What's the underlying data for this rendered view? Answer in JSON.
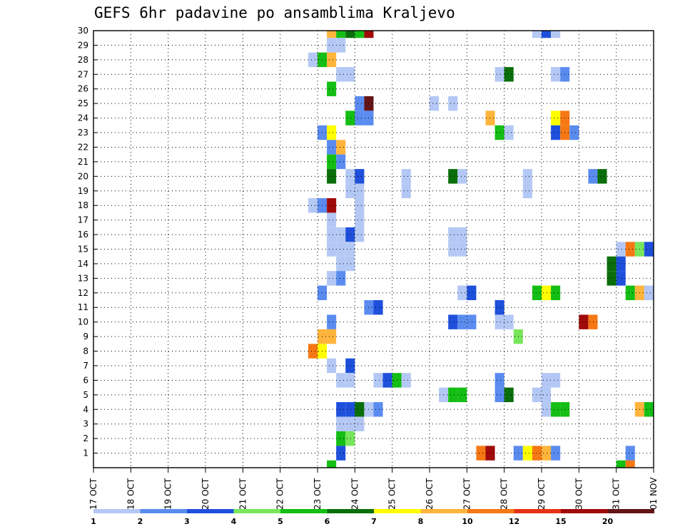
{
  "chart_data": {
    "type": "heatmap",
    "title": "GEFS 6hr padavine po ansamblima Kraljevo",
    "xlabel": "",
    "ylabel": "",
    "x_ticks": [
      "17 OCT",
      "18 OCT",
      "19 OCT",
      "20 OCT",
      "21 OCT",
      "22 OCT",
      "23 OCT",
      "24 OCT",
      "25 OCT",
      "26 OCT",
      "27 OCT",
      "28 OCT",
      "29 OCT",
      "30 OCT",
      "31 OCT",
      "01 NOV"
    ],
    "xlim": [
      0,
      15
    ],
    "y_ticks": [
      1,
      2,
      3,
      4,
      5,
      6,
      7,
      8,
      9,
      10,
      11,
      12,
      13,
      14,
      15,
      16,
      17,
      18,
      19,
      20,
      21,
      22,
      23,
      24,
      25,
      26,
      27,
      28,
      29,
      30
    ],
    "ylim": [
      0,
      30
    ],
    "grid": true,
    "legend": {
      "position": "bottom",
      "labels": [
        "1",
        "2",
        "3",
        "4",
        "5",
        "6",
        "7",
        "8",
        "10",
        "12",
        "15",
        "20"
      ],
      "colors": [
        "#b4c8f5",
        "#5a8cf0",
        "#1e50dc",
        "#78e65a",
        "#14be14",
        "#0a6e0a",
        "#ffff00",
        "#ffb43c",
        "#f57814",
        "#e63214",
        "#a00a0a",
        "#641414"
      ]
    },
    "cells": [
      [
        30,
        6.25,
        8
      ],
      [
        30,
        6.5,
        5
      ],
      [
        30,
        6.75,
        6
      ],
      [
        30,
        7.0,
        5
      ],
      [
        30,
        7.25,
        11
      ],
      [
        30,
        11.75,
        1
      ],
      [
        30,
        12.0,
        3
      ],
      [
        30,
        12.25,
        1
      ],
      [
        29,
        6.25,
        1
      ],
      [
        29,
        6.5,
        1
      ],
      [
        28,
        5.75,
        1
      ],
      [
        28,
        6.0,
        5
      ],
      [
        28,
        6.25,
        8
      ],
      [
        27,
        6.5,
        1
      ],
      [
        27,
        6.75,
        1
      ],
      [
        27,
        10.75,
        1
      ],
      [
        27,
        11.0,
        6
      ],
      [
        27,
        12.25,
        1
      ],
      [
        27,
        12.5,
        2
      ],
      [
        26,
        6.25,
        5
      ],
      [
        25,
        7.0,
        2
      ],
      [
        25,
        7.25,
        12
      ],
      [
        25,
        9.0,
        1
      ],
      [
        25,
        9.5,
        1
      ],
      [
        24,
        6.75,
        5
      ],
      [
        24,
        7.0,
        2
      ],
      [
        24,
        7.25,
        2
      ],
      [
        24,
        10.5,
        8
      ],
      [
        24,
        12.25,
        7
      ],
      [
        24,
        12.5,
        9
      ],
      [
        23,
        6.0,
        2
      ],
      [
        23,
        6.25,
        7
      ],
      [
        23,
        10.75,
        5
      ],
      [
        23,
        11.0,
        1
      ],
      [
        23,
        12.25,
        3
      ],
      [
        23,
        12.5,
        9
      ],
      [
        23,
        12.75,
        2
      ],
      [
        22,
        6.25,
        2
      ],
      [
        22,
        6.5,
        8
      ],
      [
        21,
        6.25,
        5
      ],
      [
        21,
        6.5,
        2
      ],
      [
        20,
        6.25,
        6
      ],
      [
        20,
        6.75,
        1
      ],
      [
        20,
        7.0,
        3
      ],
      [
        20,
        8.25,
        1
      ],
      [
        20,
        9.5,
        6
      ],
      [
        20,
        9.75,
        1
      ],
      [
        20,
        11.5,
        1
      ],
      [
        20,
        13.25,
        2
      ],
      [
        20,
        13.5,
        6
      ],
      [
        19,
        6.75,
        1
      ],
      [
        19,
        7.0,
        1
      ],
      [
        19,
        8.25,
        1
      ],
      [
        19,
        11.5,
        1
      ],
      [
        18,
        5.75,
        1
      ],
      [
        18,
        6.0,
        2
      ],
      [
        18,
        6.25,
        11
      ],
      [
        18,
        7.0,
        1
      ],
      [
        17,
        6.25,
        1
      ],
      [
        17,
        7.0,
        1
      ],
      [
        16,
        6.25,
        1
      ],
      [
        16,
        6.5,
        1
      ],
      [
        16,
        6.75,
        3
      ],
      [
        16,
        7.0,
        1
      ],
      [
        16,
        9.5,
        1
      ],
      [
        16,
        9.75,
        1
      ],
      [
        15,
        6.25,
        1
      ],
      [
        15,
        6.5,
        1
      ],
      [
        15,
        6.75,
        1
      ],
      [
        15,
        9.5,
        1
      ],
      [
        15,
        9.75,
        1
      ],
      [
        15,
        14.0,
        1
      ],
      [
        15,
        14.25,
        9
      ],
      [
        15,
        14.5,
        4
      ],
      [
        15,
        14.75,
        3
      ],
      [
        14,
        6.5,
        1
      ],
      [
        14,
        6.75,
        1
      ],
      [
        14,
        13.75,
        6
      ],
      [
        14,
        14.0,
        3
      ],
      [
        13,
        6.25,
        1
      ],
      [
        13,
        6.5,
        2
      ],
      [
        13,
        13.75,
        6
      ],
      [
        13,
        14.0,
        3
      ],
      [
        12,
        6.0,
        2
      ],
      [
        12,
        9.75,
        1
      ],
      [
        12,
        10.0,
        3
      ],
      [
        12,
        11.75,
        5
      ],
      [
        12,
        12.0,
        7
      ],
      [
        12,
        12.25,
        5
      ],
      [
        12,
        14.25,
        5
      ],
      [
        12,
        14.5,
        8
      ],
      [
        12,
        14.75,
        1
      ],
      [
        11,
        7.25,
        2
      ],
      [
        11,
        7.5,
        3
      ],
      [
        11,
        10.75,
        3
      ],
      [
        10,
        6.25,
        2
      ],
      [
        10,
        9.5,
        3
      ],
      [
        10,
        9.75,
        2
      ],
      [
        10,
        10.0,
        2
      ],
      [
        10,
        10.75,
        1
      ],
      [
        10,
        11.0,
        1
      ],
      [
        10,
        13.0,
        11
      ],
      [
        10,
        13.25,
        9
      ],
      [
        9,
        6.0,
        8
      ],
      [
        9,
        6.25,
        8
      ],
      [
        9,
        11.25,
        4
      ],
      [
        8,
        5.75,
        9
      ],
      [
        8,
        6.0,
        7
      ],
      [
        7,
        6.25,
        1
      ],
      [
        7,
        6.75,
        3
      ],
      [
        6,
        6.5,
        1
      ],
      [
        6,
        6.75,
        1
      ],
      [
        6,
        7.5,
        1
      ],
      [
        6,
        7.75,
        3
      ],
      [
        6,
        8.0,
        5
      ],
      [
        6,
        8.25,
        1
      ],
      [
        6,
        10.75,
        2
      ],
      [
        6,
        12.0,
        1
      ],
      [
        6,
        12.25,
        1
      ],
      [
        5,
        9.25,
        1
      ],
      [
        5,
        9.5,
        5
      ],
      [
        5,
        9.75,
        5
      ],
      [
        5,
        10.75,
        2
      ],
      [
        5,
        11.0,
        6
      ],
      [
        5,
        11.75,
        1
      ],
      [
        5,
        12.0,
        1
      ],
      [
        4,
        6.5,
        3
      ],
      [
        4,
        6.75,
        3
      ],
      [
        4,
        7.0,
        6
      ],
      [
        4,
        7.25,
        1
      ],
      [
        4,
        7.5,
        2
      ],
      [
        4,
        12.0,
        1
      ],
      [
        4,
        12.25,
        5
      ],
      [
        4,
        12.5,
        5
      ],
      [
        4,
        14.5,
        8
      ],
      [
        4,
        14.75,
        5
      ],
      [
        4,
        15.0,
        5
      ],
      [
        3,
        6.5,
        1
      ],
      [
        3,
        6.75,
        1
      ],
      [
        3,
        7.0,
        1
      ],
      [
        2,
        6.5,
        5
      ],
      [
        2,
        6.75,
        4
      ],
      [
        1,
        6.5,
        3
      ],
      [
        1,
        10.25,
        9
      ],
      [
        1,
        10.5,
        11
      ],
      [
        1,
        11.25,
        2
      ],
      [
        1,
        11.5,
        7
      ],
      [
        1,
        11.75,
        9
      ],
      [
        1,
        12.0,
        8
      ],
      [
        1,
        12.25,
        2
      ],
      [
        1,
        14.25,
        2
      ],
      [
        1,
        15.0,
        8
      ],
      [
        0,
        6.25,
        5
      ],
      [
        0,
        14.0,
        5
      ],
      [
        0,
        14.25,
        9
      ]
    ]
  }
}
